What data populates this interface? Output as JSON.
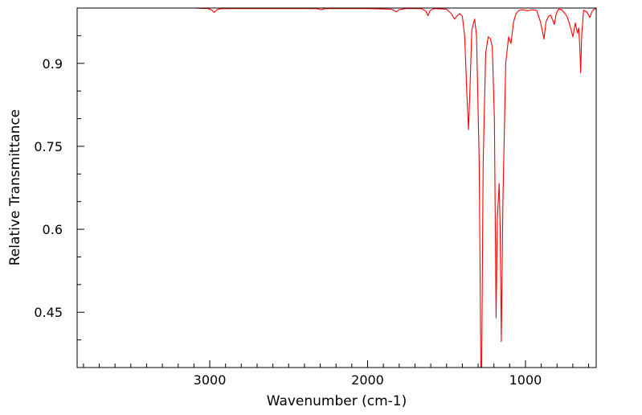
{
  "chart_data": {
    "type": "line",
    "title": "",
    "xlabel": "Wavenumber (cm-1)",
    "ylabel": "Relative Transmittance",
    "xlim": [
      3840,
      552
    ],
    "ylim": [
      0.35,
      1.0
    ],
    "x_ticks": [
      3000,
      2000,
      1000
    ],
    "x_tick_labels": [
      "3000",
      "2000",
      "1000"
    ],
    "x_minor_step": 100,
    "y_ticks": [
      0.45,
      0.6,
      0.75,
      0.9
    ],
    "y_tick_labels": [
      "0.45",
      "0.6",
      "0.75",
      "0.9"
    ],
    "y_minor_step": 0.05,
    "grid": false,
    "series": [
      {
        "name": "spectrum",
        "color": "#ff0000",
        "points": [
          [
            3840,
            1.0
          ],
          [
            3100,
            1.0
          ],
          [
            3010,
            0.999
          ],
          [
            2985,
            0.996
          ],
          [
            2971,
            0.992
          ],
          [
            2955,
            0.997
          ],
          [
            2930,
            0.999
          ],
          [
            2700,
            0.999
          ],
          [
            2320,
            0.999
          ],
          [
            2293,
            0.997
          ],
          [
            2270,
            0.999
          ],
          [
            2000,
            0.999
          ],
          [
            1850,
            0.998
          ],
          [
            1830,
            0.995
          ],
          [
            1819,
            0.993
          ],
          [
            1800,
            0.997
          ],
          [
            1760,
            0.999
          ],
          [
            1660,
            0.999
          ],
          [
            1630,
            0.994
          ],
          [
            1618,
            0.986
          ],
          [
            1605,
            0.995
          ],
          [
            1580,
            0.999
          ],
          [
            1500,
            0.998
          ],
          [
            1470,
            0.99
          ],
          [
            1449,
            0.98
          ],
          [
            1430,
            0.987
          ],
          [
            1417,
            0.99
          ],
          [
            1400,
            0.985
          ],
          [
            1385,
            0.95
          ],
          [
            1372,
            0.85
          ],
          [
            1361,
            0.78
          ],
          [
            1352,
            0.85
          ],
          [
            1340,
            0.96
          ],
          [
            1322,
            0.98
          ],
          [
            1310,
            0.95
          ],
          [
            1293,
            0.72
          ],
          [
            1280,
            0.25
          ],
          [
            1268,
            0.72
          ],
          [
            1252,
            0.92
          ],
          [
            1236,
            0.948
          ],
          [
            1224,
            0.945
          ],
          [
            1210,
            0.93
          ],
          [
            1197,
            0.8
          ],
          [
            1186,
            0.44
          ],
          [
            1178,
            0.62
          ],
          [
            1167,
            0.683
          ],
          [
            1160,
            0.6
          ],
          [
            1153,
            0.397
          ],
          [
            1143,
            0.65
          ],
          [
            1125,
            0.9
          ],
          [
            1107,
            0.948
          ],
          [
            1092,
            0.936
          ],
          [
            1075,
            0.975
          ],
          [
            1060,
            0.99
          ],
          [
            1040,
            0.996
          ],
          [
            1019,
            0.997
          ],
          [
            985,
            0.995
          ],
          [
            960,
            0.997
          ],
          [
            929,
            0.996
          ],
          [
            905,
            0.975
          ],
          [
            883,
            0.944
          ],
          [
            870,
            0.975
          ],
          [
            855,
            0.985
          ],
          [
            840,
            0.987
          ],
          [
            827,
            0.978
          ],
          [
            817,
            0.97
          ],
          [
            805,
            0.99
          ],
          [
            791,
            0.998
          ],
          [
            770,
            0.997
          ],
          [
            737,
            0.985
          ],
          [
            720,
            0.97
          ],
          [
            699,
            0.948
          ],
          [
            685,
            0.973
          ],
          [
            671,
            0.955
          ],
          [
            663,
            0.964
          ],
          [
            656,
            0.93
          ],
          [
            650,
            0.883
          ],
          [
            644,
            0.95
          ],
          [
            632,
            0.996
          ],
          [
            612,
            0.993
          ],
          [
            592,
            0.983
          ],
          [
            580,
            0.993
          ],
          [
            565,
            0.998
          ],
          [
            552,
            0.999
          ]
        ]
      }
    ]
  }
}
